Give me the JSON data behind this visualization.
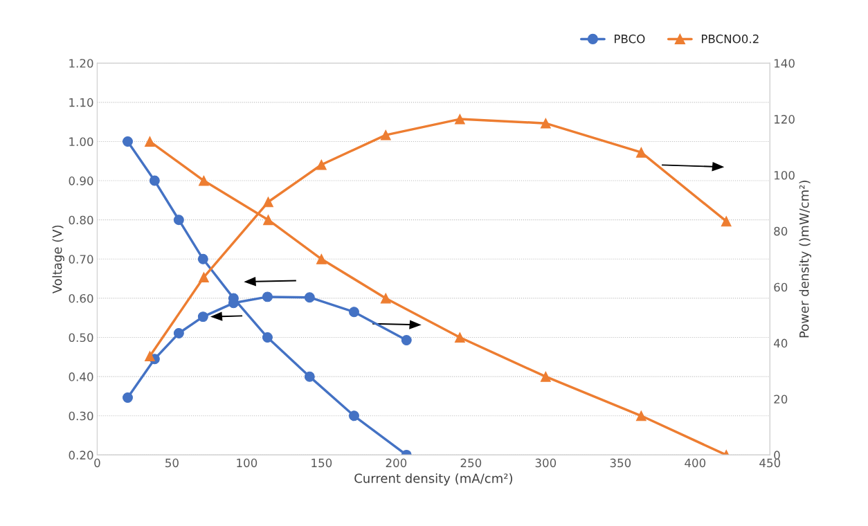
{
  "chart_data": {
    "type": "line",
    "xlabel": "Current density (mA/cm²)",
    "ylabel": "Voltage (V)",
    "y2label": "Power density ()mW/cm²)",
    "xlim": [
      0,
      450
    ],
    "xticks": [
      0,
      50,
      100,
      150,
      200,
      250,
      300,
      350,
      400,
      450
    ],
    "ylim": [
      0.2,
      1.2
    ],
    "yticks": [
      {
        "value": 0.2,
        "label": "0.20"
      },
      {
        "value": 0.3,
        "label": "0.30"
      },
      {
        "value": 0.4,
        "label": "0.40"
      },
      {
        "value": 0.5,
        "label": "0.50"
      },
      {
        "value": 0.6,
        "label": "0.60"
      },
      {
        "value": 0.7,
        "label": "0.70"
      },
      {
        "value": 0.8,
        "label": "0.80"
      },
      {
        "value": 0.9,
        "label": "0.90"
      },
      {
        "value": 1.0,
        "label": "1.00"
      },
      {
        "value": 1.1,
        "label": "1.10"
      },
      {
        "value": 1.2,
        "label": "1.20"
      }
    ],
    "y2lim": [
      0,
      140
    ],
    "y2ticks": [
      0,
      20,
      40,
      60,
      80,
      100,
      120,
      140
    ],
    "grid": "y",
    "legend": "top right",
    "series": [
      {
        "name": "PBCO",
        "color": "#4472c4",
        "marker": "circle",
        "x": [
          20.4,
          38.4,
          54.6,
          70.8,
          91.2,
          113.9,
          142.1,
          171.8,
          206.9
        ],
        "values": [
          1.0,
          0.9,
          0.8,
          0.7,
          0.6,
          0.5,
          0.4,
          0.3,
          0.2
        ]
      },
      {
        "name": "PBCNO0.2",
        "color": "#ed7d31",
        "marker": "triangle",
        "x": [
          35.2,
          71.3,
          114.4,
          150,
          193,
          242.6,
          300,
          363.9,
          420.8
        ],
        "values": [
          1.0,
          0.9,
          0.8,
          0.7,
          0.6,
          0.5,
          0.4,
          0.3,
          0.2
        ]
      },
      {
        "color": "#4472c4",
        "marker": "circle",
        "axis": "y2",
        "x": [
          20.4,
          38.4,
          54.6,
          70.8,
          91.2,
          113.9,
          142.1,
          171.8,
          206.9
        ],
        "values": [
          20.5,
          34.3,
          43.5,
          49.4,
          54.3,
          56.5,
          56.3,
          51.1,
          41.0
        ]
      },
      {
        "color": "#ed7d31",
        "marker": "triangle",
        "axis": "y2",
        "x": [
          35.2,
          71.3,
          114.4,
          150,
          193,
          242.6,
          300,
          363.9,
          420.8
        ],
        "values": [
          35.3,
          63.5,
          90.4,
          103.7,
          114.3,
          120,
          118.5,
          108.1,
          83.5
        ]
      }
    ]
  }
}
